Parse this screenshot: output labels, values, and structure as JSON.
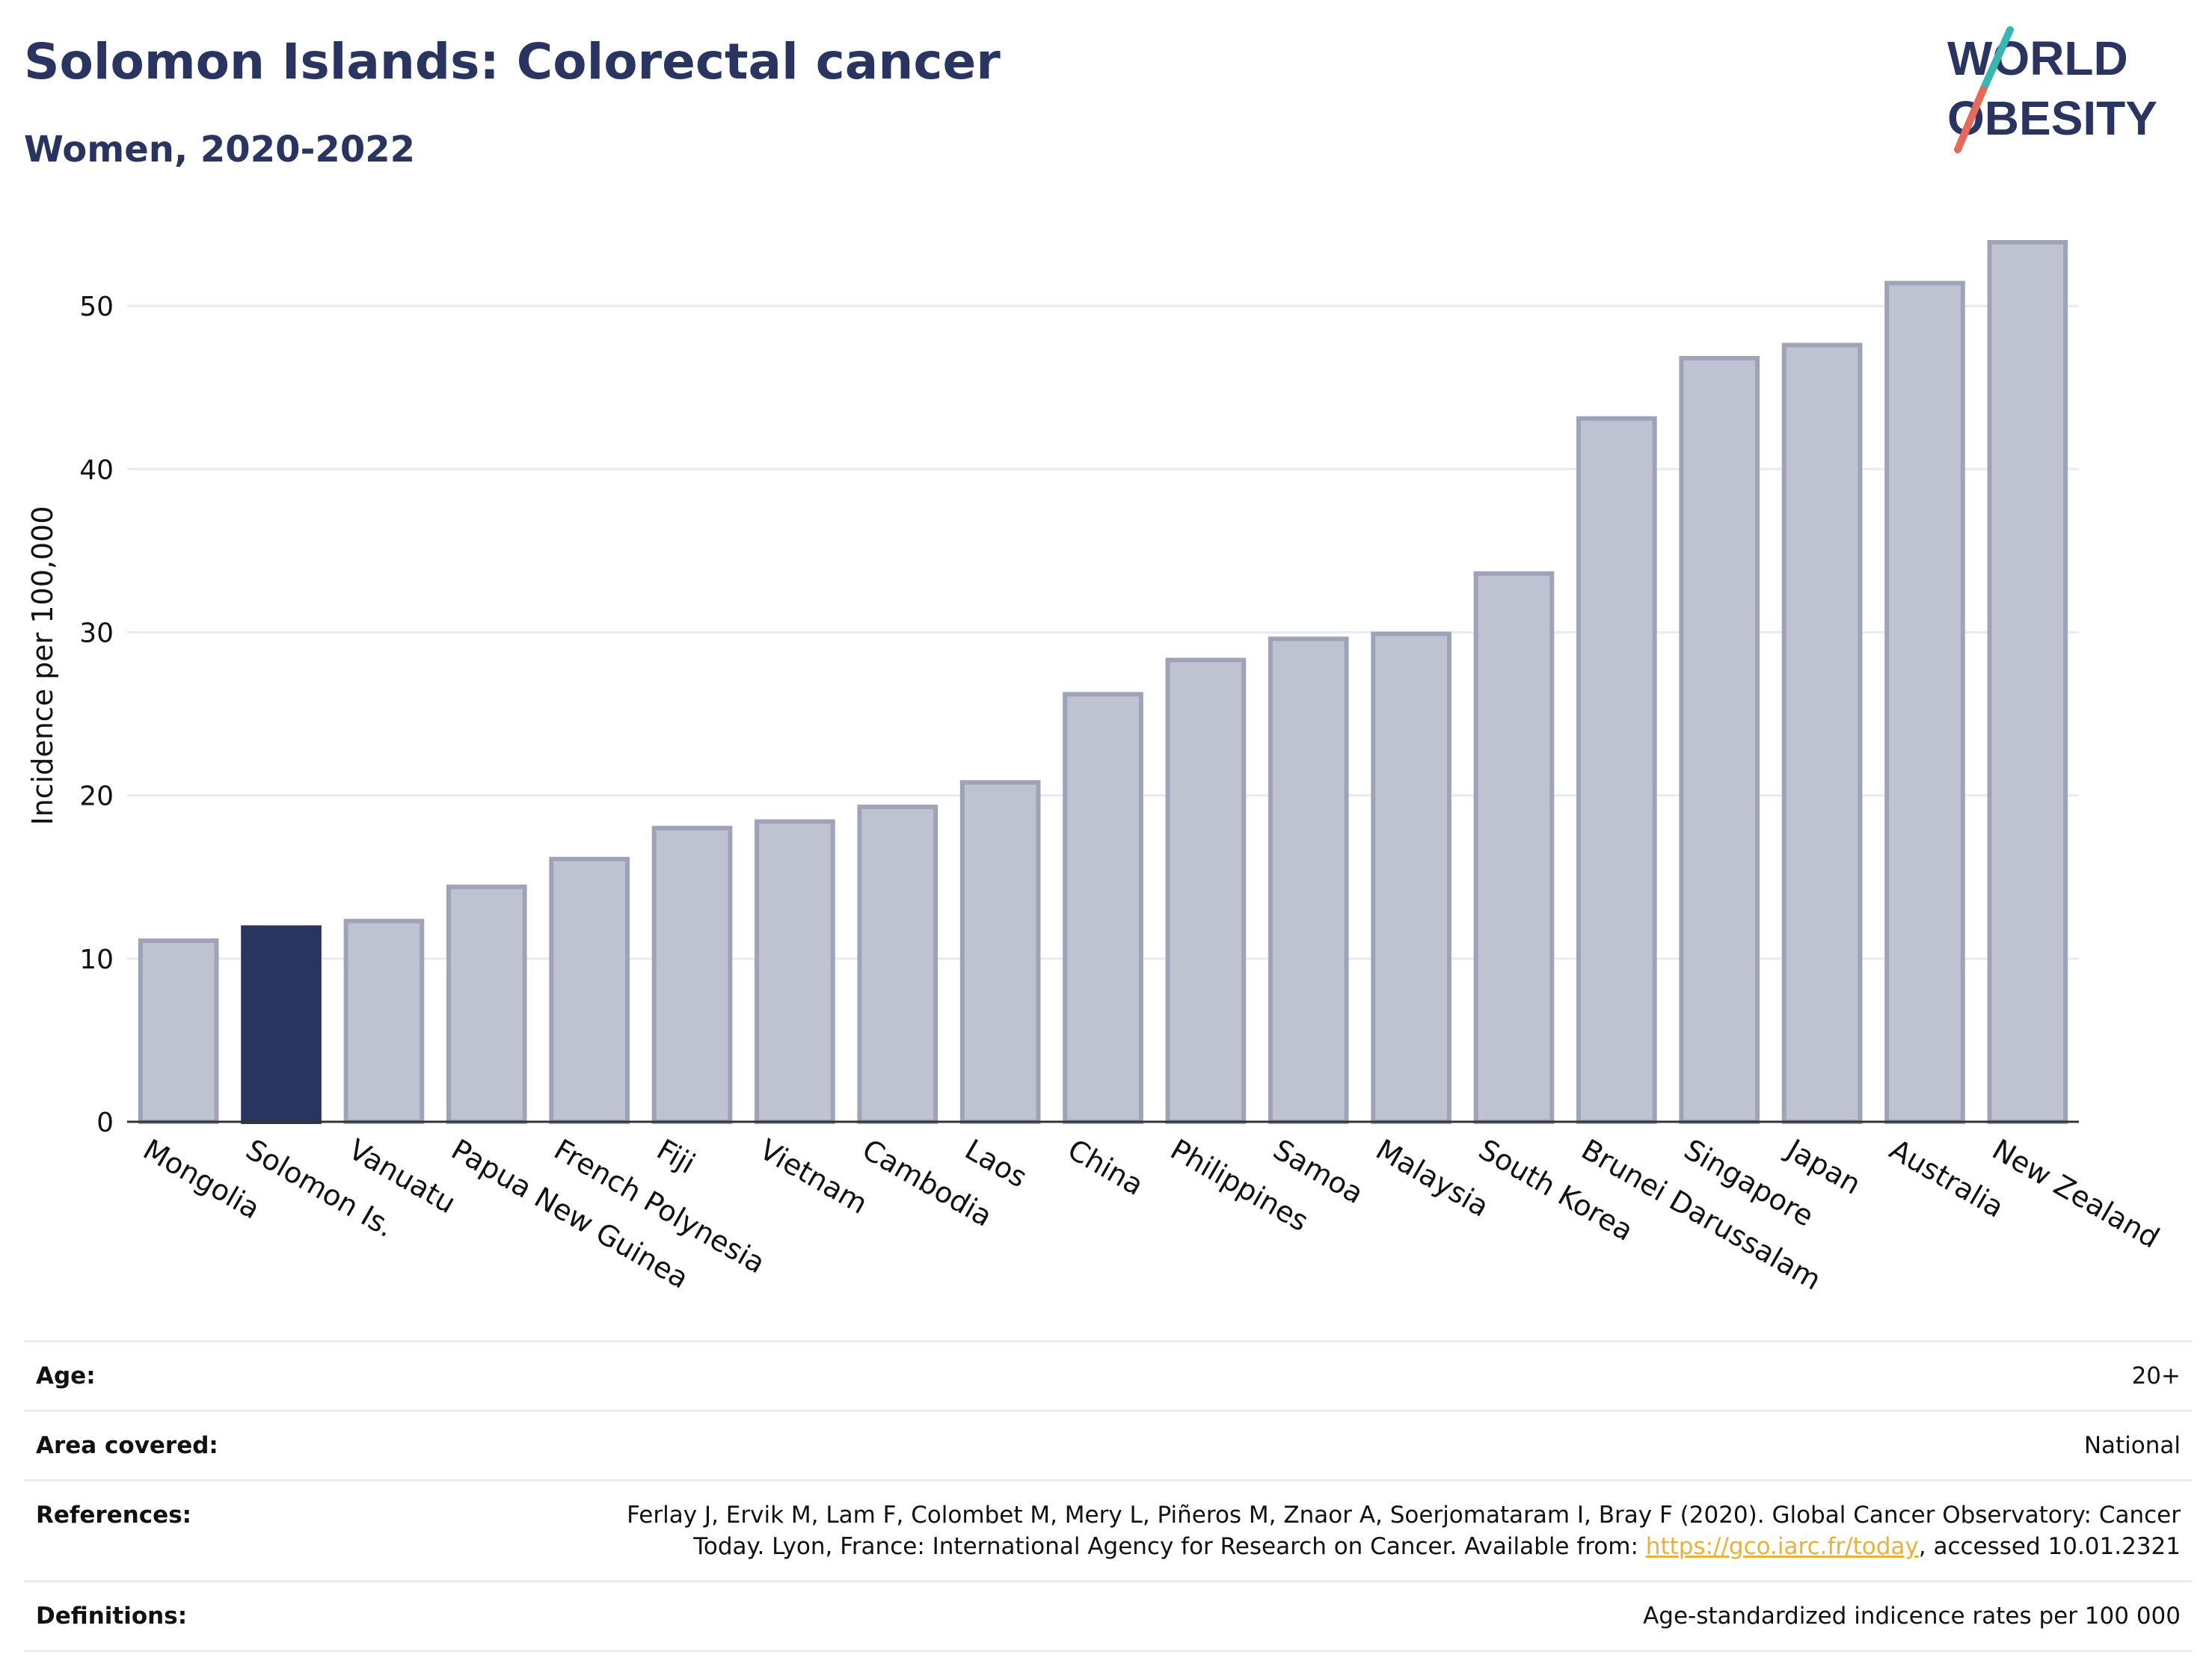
{
  "header": {
    "title": "Solomon Islands: Colorectal cancer",
    "subtitle": "Women, 2020-2022"
  },
  "logo": {
    "line1": "WORLD",
    "line2": "OBESITY",
    "colors": {
      "navy": "#2a3461",
      "teal": "#39b5b2",
      "coral": "#e56a5c"
    }
  },
  "chart_data": {
    "type": "bar",
    "title": "Solomon Islands: Colorectal cancer",
    "subtitle": "Women, 2020-2022",
    "xlabel": "",
    "ylabel": "Incidence per 100,000",
    "ylim": [
      0,
      55
    ],
    "yticks": [
      0,
      10,
      20,
      30,
      40,
      50
    ],
    "grid": true,
    "categories": [
      "Mongolia",
      "Solomon Is.",
      "Vanuatu",
      "Papua New Guinea",
      "French Polynesia",
      "Fiji",
      "Vietnam",
      "Cambodia",
      "Laos",
      "China",
      "Philippines",
      "Samoa",
      "Malaysia",
      "South Korea",
      "Brunei Darussalam",
      "Singapore",
      "Japan",
      "Australia",
      "New Zealand"
    ],
    "values": [
      11.1,
      11.9,
      12.3,
      14.4,
      16.1,
      18.0,
      18.4,
      19.3,
      20.8,
      26.2,
      28.3,
      29.6,
      29.9,
      33.6,
      43.1,
      46.8,
      47.6,
      51.4,
      53.9
    ],
    "highlight": "Solomon Is.",
    "colors": {
      "highlight": "#2a3461",
      "other_fill": "#bfc2d0",
      "other_stroke": "#9ea3b8"
    }
  },
  "meta": {
    "age": {
      "label": "Age:",
      "value": "20+"
    },
    "area": {
      "label": "Area covered:",
      "value": "National"
    },
    "references": {
      "label": "References:",
      "line1": "Ferlay J, Ervik M, Lam F, Colombet M, Mery L, Piñeros M, Znaor A, Soerjomataram I, Bray F (2020). Global Cancer Observatory: Cancer",
      "line2_pre": "Today. Lyon, France: International Agency for Research on Cancer. Available from: ",
      "link": "https://gco.iarc.fr/today",
      "line2_post": ", accessed 10.01.2321"
    },
    "definitions": {
      "label": "Definitions:",
      "value": "Age-standardized indicence rates per 100 000"
    }
  }
}
